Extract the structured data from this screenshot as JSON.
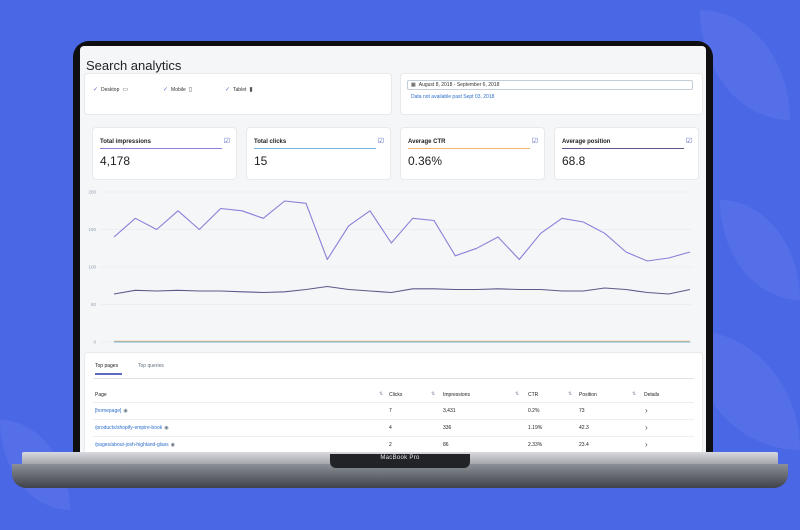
{
  "page_title": "Search analytics",
  "devices": [
    {
      "label": "Desktop",
      "icon": "desktop-icon",
      "checked": true
    },
    {
      "label": "Mobile",
      "icon": "mobile-icon",
      "checked": true
    },
    {
      "label": "Tablet",
      "icon": "tablet-icon",
      "checked": true
    }
  ],
  "date_range": {
    "label": "August 8, 2018 - September 6, 2018",
    "note": "Data not available past Sept 03, 2018",
    "icon": "calendar-icon"
  },
  "metrics": [
    {
      "label": "Total impressions",
      "value": "4,178",
      "color": "#8a7fd9"
    },
    {
      "label": "Total clicks",
      "value": "15",
      "color": "#6fb6df"
    },
    {
      "label": "Average CTR",
      "value": "0.36%",
      "color": "#f0b66b"
    },
    {
      "label": "Average position",
      "value": "68.8",
      "color": "#5c5a8a"
    }
  ],
  "chart_data": {
    "type": "line",
    "y_ticks": [
      "200",
      "150",
      "100",
      "50",
      "0"
    ],
    "ylim": [
      0,
      200
    ],
    "grid": true,
    "series": [
      {
        "color": "#8a7fd9",
        "values": [
          140,
          165,
          150,
          175,
          150,
          178,
          175,
          165,
          188,
          185,
          110,
          155,
          175,
          132,
          165,
          162,
          115,
          125,
          140,
          110,
          145,
          165,
          160,
          145,
          120,
          108,
          112,
          120
        ]
      },
      {
        "color": "#5c5a8a",
        "values": [
          64,
          69,
          68,
          69,
          68,
          68,
          67,
          66,
          67,
          70,
          74,
          70,
          68,
          66,
          71,
          71,
          70,
          70,
          71,
          70,
          70,
          68,
          68,
          72,
          70,
          66,
          64,
          70
        ]
      },
      {
        "color": "#f0b66b",
        "values": [
          1,
          1,
          1,
          1,
          1,
          1,
          1,
          1,
          1,
          1,
          1,
          1,
          1,
          1,
          1,
          1,
          1,
          1,
          1,
          1,
          1,
          1,
          1,
          1,
          1,
          1,
          1,
          1
        ]
      },
      {
        "color": "#6fb6df",
        "values": [
          0,
          0,
          0,
          0,
          0,
          0,
          0,
          0,
          0,
          0,
          0,
          0,
          0,
          0,
          0,
          0,
          0,
          0,
          0,
          0,
          0,
          0,
          0,
          0,
          0,
          0,
          0,
          0
        ]
      }
    ]
  },
  "table": {
    "tabs": [
      "Top pages",
      "Top queries"
    ],
    "headers": [
      "Page",
      "Clicks",
      "Impressions",
      "CTR",
      "Position",
      "Details"
    ],
    "rows": [
      {
        "page": "[homepage]",
        "clicks": "7",
        "impressions": "3,431",
        "ctr": "0.2%",
        "position": "73"
      },
      {
        "page": "/products/shopify-empire-book",
        "clicks": "4",
        "impressions": "336",
        "ctr": "1.19%",
        "position": "42.3"
      },
      {
        "page": "/pages/about-josh-highland-glass",
        "clicks": "2",
        "impressions": "86",
        "ctr": "2.33%",
        "position": "23.4"
      }
    ]
  },
  "laptop_label": "MacBook Pro"
}
